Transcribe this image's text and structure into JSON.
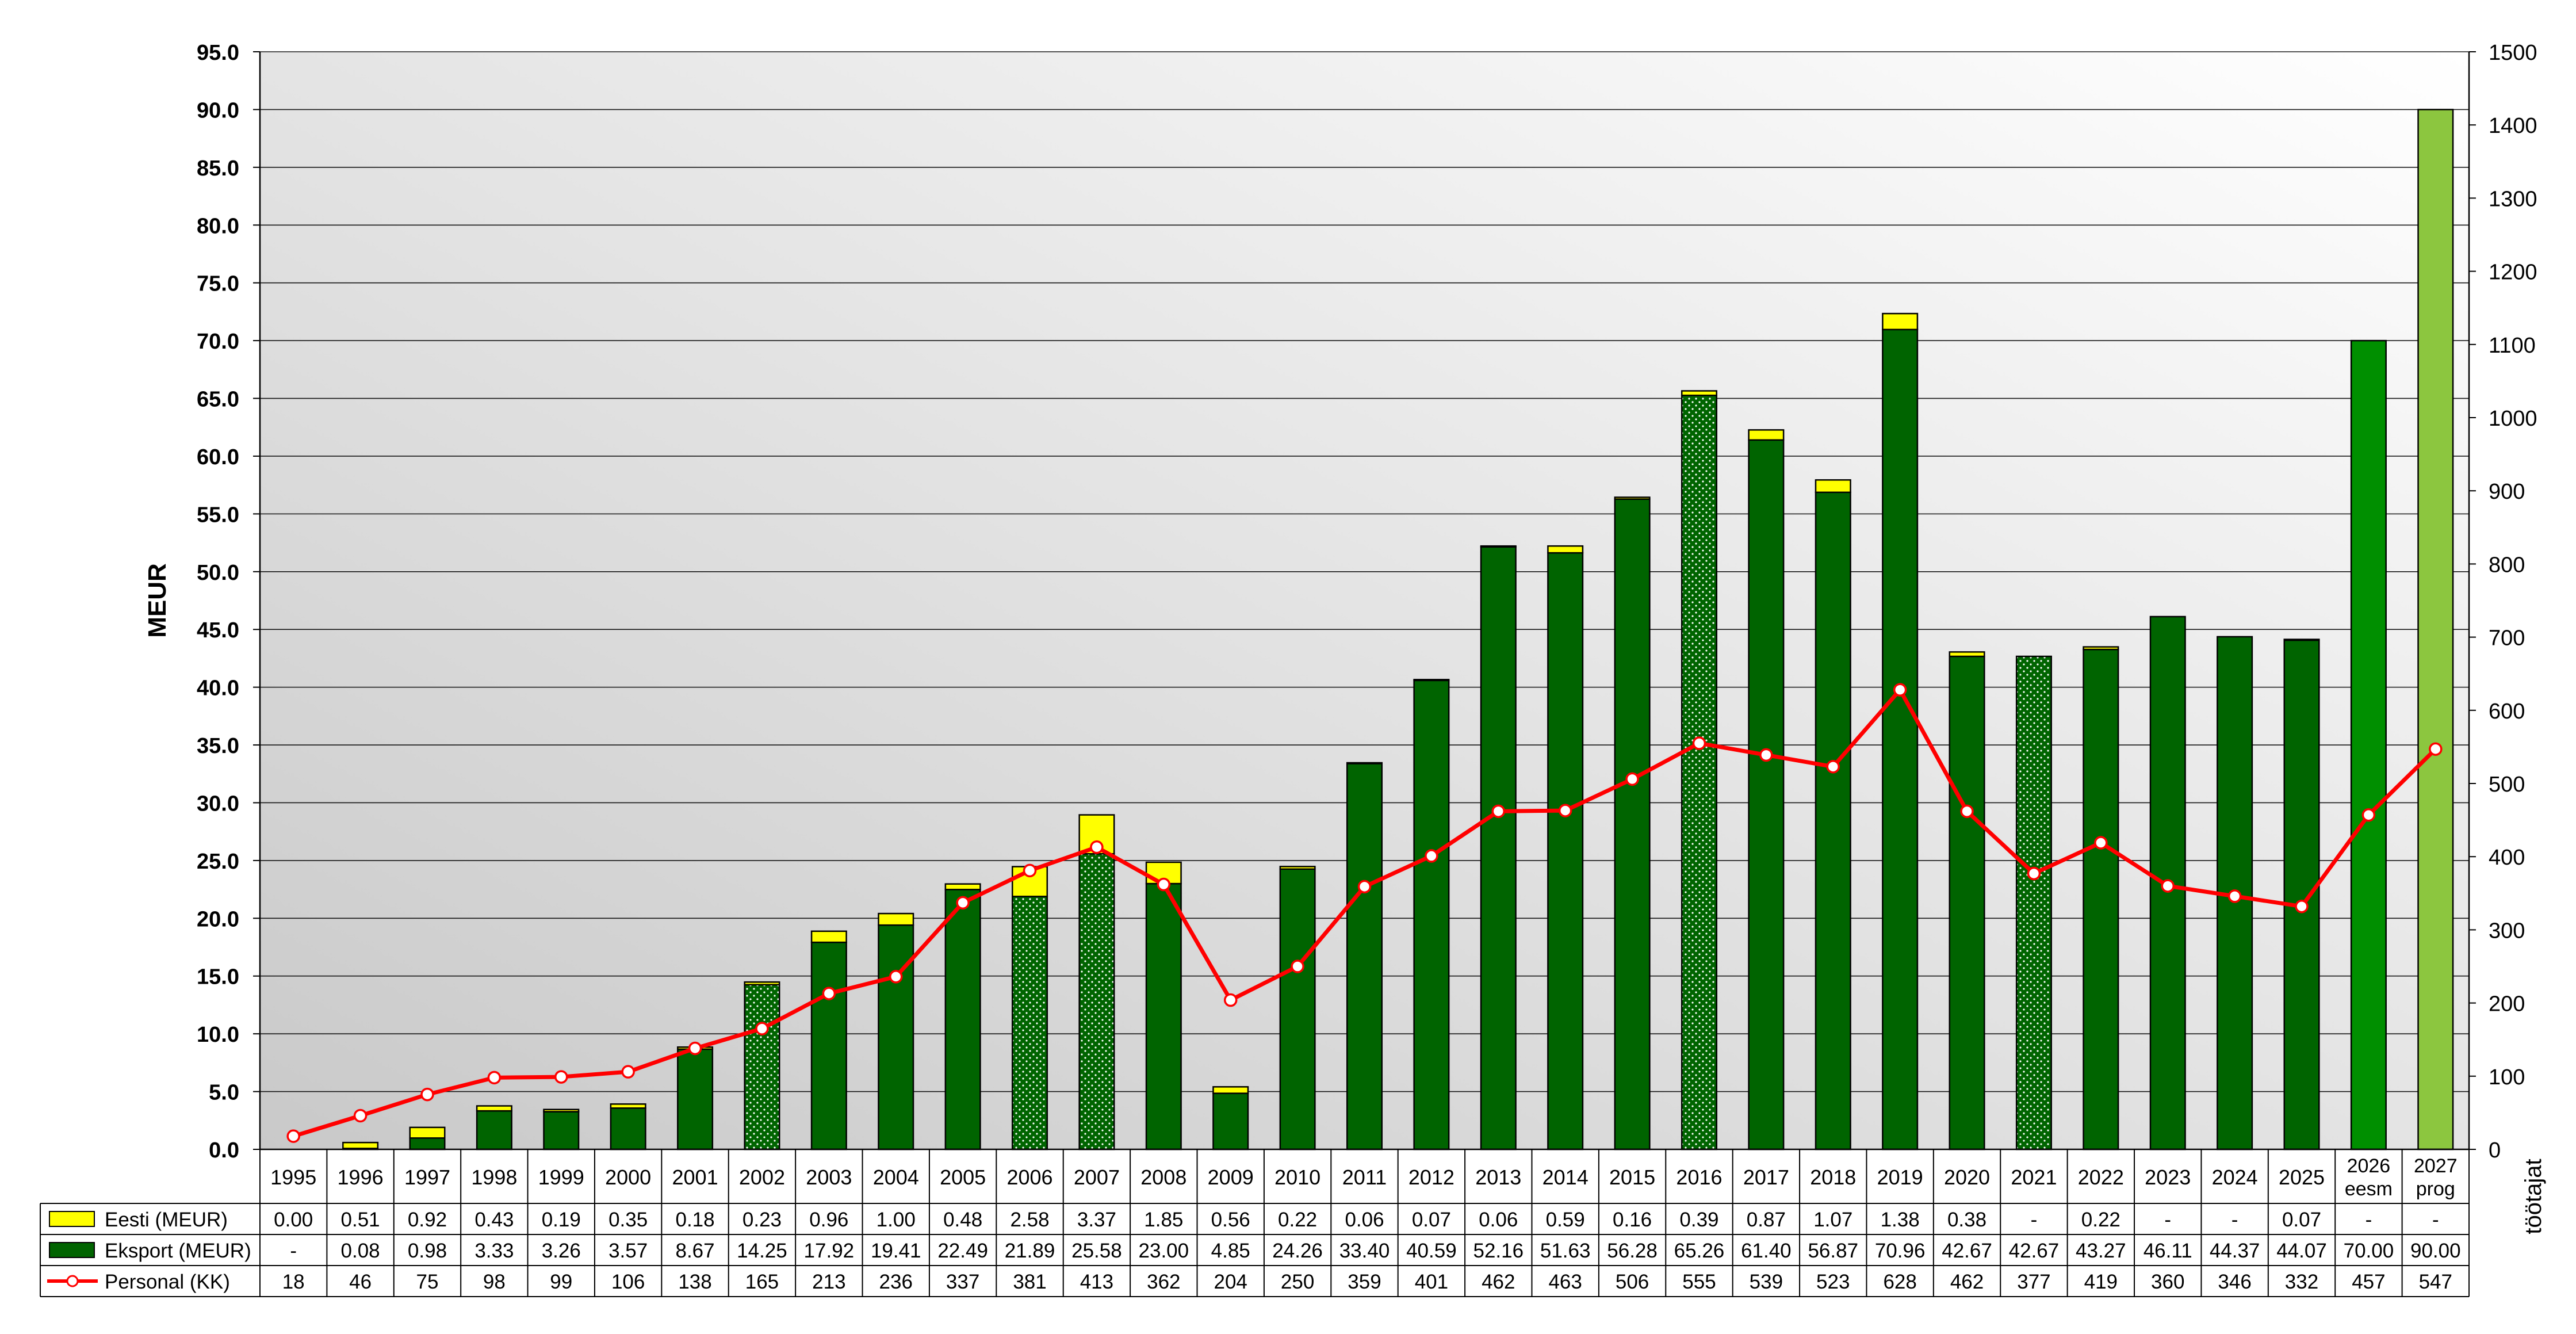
{
  "chart_data": {
    "type": "bar",
    "title": "",
    "ylabel": "MEUR",
    "y2label": "töötajat",
    "ylim": [
      0,
      95
    ],
    "y_ticks": [
      "0.0",
      "5.0",
      "10.0",
      "15.0",
      "20.0",
      "25.0",
      "30.0",
      "35.0",
      "40.0",
      "45.0",
      "50.0",
      "55.0",
      "60.0",
      "65.0",
      "70.0",
      "75.0",
      "80.0",
      "85.0",
      "90.0",
      "95.0"
    ],
    "y2lim": [
      0,
      1500
    ],
    "y2_ticks": [
      "0",
      "100",
      "200",
      "300",
      "400",
      "500",
      "600",
      "700",
      "800",
      "900",
      "1000",
      "1100",
      "1200",
      "1300",
      "1400",
      "1500"
    ],
    "grid": true,
    "legend_placement": "bottom data table",
    "categories": [
      "1995",
      "1996",
      "1997",
      "1998",
      "1999",
      "2000",
      "2001",
      "2002",
      "2003",
      "2004",
      "2005",
      "2006",
      "2007",
      "2008",
      "2009",
      "2010",
      "2011",
      "2012",
      "2013",
      "2014",
      "2015",
      "2016",
      "2017",
      "2018",
      "2019",
      "2020",
      "2021",
      "2022",
      "2023",
      "2024",
      "2025",
      "2026\neesm",
      "2027\nprog"
    ],
    "bar_styles": [
      "solid",
      "solid",
      "solid",
      "solid",
      "solid",
      "solid",
      "solid",
      "dotted",
      "solid",
      "solid",
      "solid",
      "dotted",
      "dotted",
      "solid",
      "solid",
      "solid",
      "solid",
      "solid",
      "solid",
      "solid",
      "solid",
      "dotted",
      "solid",
      "solid",
      "solid",
      "solid",
      "dotted",
      "solid",
      "solid",
      "solid",
      "solid",
      "estimate",
      "forecast"
    ],
    "series": [
      {
        "name": "Eesti (MEUR)",
        "kind": "bar-stack-top",
        "color": "#ffff00",
        "values": [
          0.0,
          0.51,
          0.92,
          0.43,
          0.19,
          0.35,
          0.18,
          0.23,
          0.96,
          1.0,
          0.48,
          2.58,
          3.37,
          1.85,
          0.56,
          0.22,
          0.06,
          0.07,
          0.06,
          0.59,
          0.16,
          0.39,
          0.87,
          1.07,
          1.38,
          0.38,
          null,
          0.22,
          null,
          null,
          0.07,
          null,
          null
        ],
        "labels": [
          "0.00",
          "0.51",
          "0.92",
          "0.43",
          "0.19",
          "0.35",
          "0.18",
          "0.23",
          "0.96",
          "1.00",
          "0.48",
          "2.58",
          "3.37",
          "1.85",
          "0.56",
          "0.22",
          "0.06",
          "0.07",
          "0.06",
          "0.59",
          "0.16",
          "0.39",
          "0.87",
          "1.07",
          "1.38",
          "0.38",
          "-",
          "0.22",
          "-",
          "-",
          "0.07",
          "-",
          "-"
        ]
      },
      {
        "name": "Eksport (MEUR)",
        "kind": "bar-stack-base",
        "color": "#006400",
        "values": [
          null,
          0.08,
          0.98,
          3.33,
          3.26,
          3.57,
          8.67,
          14.25,
          17.92,
          19.41,
          22.49,
          21.89,
          25.58,
          23.0,
          4.85,
          24.26,
          33.4,
          40.59,
          52.16,
          51.63,
          56.28,
          65.26,
          61.4,
          56.87,
          70.96,
          42.67,
          42.67,
          43.27,
          46.11,
          44.37,
          44.07,
          70.0,
          90.0
        ],
        "labels": [
          "-",
          "0.08",
          "0.98",
          "3.33",
          "3.26",
          "3.57",
          "8.67",
          "14.25",
          "17.92",
          "19.41",
          "22.49",
          "21.89",
          "25.58",
          "23.00",
          "4.85",
          "24.26",
          "33.40",
          "40.59",
          "52.16",
          "51.63",
          "56.28",
          "65.26",
          "61.40",
          "56.87",
          "70.96",
          "42.67",
          "42.67",
          "43.27",
          "46.11",
          "44.37",
          "44.07",
          "70.00",
          "90.00"
        ]
      },
      {
        "name": "Personal (KK)",
        "kind": "line-secondary-axis",
        "color": "#ff0000",
        "values": [
          18,
          46,
          75,
          98,
          99,
          106,
          138,
          165,
          213,
          236,
          337,
          381,
          413,
          362,
          204,
          250,
          359,
          401,
          462,
          463,
          506,
          555,
          539,
          523,
          628,
          462,
          377,
          419,
          360,
          346,
          332,
          457,
          547
        ],
        "labels": [
          "18",
          "46",
          "75",
          "98",
          "99",
          "106",
          "138",
          "165",
          "213",
          "236",
          "337",
          "381",
          "413",
          "362",
          "204",
          "250",
          "359",
          "401",
          "462",
          "463",
          "506",
          "555",
          "539",
          "523",
          "628",
          "462",
          "377",
          "419",
          "360",
          "346",
          "332",
          "457",
          "547"
        ]
      }
    ],
    "colors": {
      "eksport": "#006400",
      "eesti": "#ffff00",
      "personal_line": "#ff0000",
      "estimate_bar": "#008f00",
      "forecast_bar": "#8cc63f",
      "dots": "#ffffff"
    }
  }
}
